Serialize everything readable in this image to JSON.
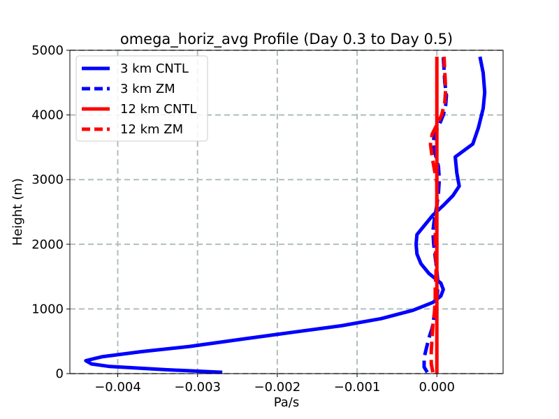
{
  "chart_data": {
    "type": "line",
    "title": "omega_horiz_avg Profile (Day 0.3 to Day 0.5)",
    "xlabel": "Pa/s",
    "ylabel": "Height (m)",
    "xlim": [
      -0.0046,
      0.00083
    ],
    "ylim": [
      0,
      5000
    ],
    "grid": true,
    "legend_position": "upper-left",
    "x_ticks": [
      -0.004,
      -0.003,
      -0.002,
      -0.001,
      0.0
    ],
    "x_tick_labels": [
      "−0.004",
      "−0.003",
      "−0.002",
      "−0.001",
      "0.000"
    ],
    "y_ticks": [
      0,
      1000,
      2000,
      3000,
      4000,
      5000
    ],
    "y_tick_labels": [
      "0",
      "1000",
      "2000",
      "3000",
      "4000",
      "5000"
    ],
    "series": [
      {
        "name": "3 km CNTL",
        "color": "#0000ff",
        "style": "solid",
        "points": [
          [
            -0.00269,
            20
          ],
          [
            -0.0034,
            60
          ],
          [
            -0.0041,
            110
          ],
          [
            -0.00433,
            150
          ],
          [
            -0.0044,
            200
          ],
          [
            -0.0042,
            260
          ],
          [
            -0.0037,
            340
          ],
          [
            -0.0031,
            420
          ],
          [
            -0.0024,
            540
          ],
          [
            -0.0018,
            640
          ],
          [
            -0.0012,
            740
          ],
          [
            -0.0007,
            850
          ],
          [
            -0.0003,
            980
          ],
          [
            -5e-05,
            1100
          ],
          [
            5e-05,
            1200
          ],
          [
            8e-05,
            1300
          ],
          [
            5e-05,
            1400
          ],
          [
            -0.0001,
            1550
          ],
          [
            -0.0002,
            1700
          ],
          [
            -0.00025,
            1850
          ],
          [
            -0.00026,
            2000
          ],
          [
            -0.00025,
            2150
          ],
          [
            -0.00015,
            2300
          ],
          [
            -5e-05,
            2450
          ],
          [
            8e-05,
            2600
          ],
          [
            0.0002,
            2750
          ],
          [
            0.00028,
            2900
          ],
          [
            0.00025,
            3100
          ],
          [
            0.00023,
            3350
          ],
          [
            0.00045,
            3550
          ],
          [
            0.00052,
            3800
          ],
          [
            0.00058,
            4100
          ],
          [
            0.0006,
            4350
          ],
          [
            0.00058,
            4650
          ],
          [
            0.00054,
            4900
          ]
        ]
      },
      {
        "name": "3 km ZM",
        "color": "#0000ff",
        "style": "dashed",
        "points": [
          [
            -0.00012,
            20
          ],
          [
            -0.00016,
            100
          ],
          [
            -0.00016,
            250
          ],
          [
            -0.00013,
            400
          ],
          [
            -0.0001,
            550
          ],
          [
            -6e-05,
            700
          ],
          [
            -4e-05,
            850
          ],
          [
            -2e-05,
            1000
          ],
          [
            0.0,
            1150
          ],
          [
            1e-05,
            1300
          ],
          [
            1e-05,
            1450
          ],
          [
            0.0,
            1600
          ],
          [
            -2e-05,
            1800
          ],
          [
            -4e-05,
            2000
          ],
          [
            -5e-05,
            2200
          ],
          [
            -3e-05,
            2400
          ],
          [
            0.0,
            2600
          ],
          [
            2e-05,
            2800
          ],
          [
            3e-05,
            3000
          ],
          [
            2e-05,
            3200
          ],
          [
            -2e-05,
            3400
          ],
          [
            -5e-05,
            3550
          ],
          [
            -3e-05,
            3700
          ],
          [
            3e-05,
            3850
          ],
          [
            8e-05,
            4000
          ],
          [
            0.00011,
            4150
          ],
          [
            0.00012,
            4300
          ],
          [
            0.0001,
            4500
          ],
          [
            9e-05,
            4700
          ],
          [
            8e-05,
            4900
          ]
        ]
      },
      {
        "name": "12 km CNTL",
        "color": "#ff0000",
        "style": "solid",
        "points": [
          [
            0.0,
            0
          ],
          [
            0.0,
            1000
          ],
          [
            0.0,
            2000
          ],
          [
            0.0,
            3000
          ],
          [
            0.0,
            4000
          ],
          [
            0.0,
            4900
          ]
        ]
      },
      {
        "name": "12 km ZM",
        "color": "#ff0000",
        "style": "dashed",
        "points": [
          [
            -5e-05,
            20
          ],
          [
            -7e-05,
            150
          ],
          [
            -7e-05,
            350
          ],
          [
            -6e-05,
            550
          ],
          [
            -5e-05,
            750
          ],
          [
            -3e-05,
            950
          ],
          [
            -2e-05,
            1150
          ],
          [
            -2e-05,
            1350
          ],
          [
            -1e-05,
            1550
          ],
          [
            -1e-05,
            1750
          ],
          [
            -2e-05,
            1950
          ],
          [
            -2e-05,
            2150
          ],
          [
            -1e-05,
            2350
          ],
          [
            0.0,
            2550
          ],
          [
            0.0,
            2750
          ],
          [
            0.0,
            2950
          ],
          [
            -3e-05,
            3150
          ],
          [
            -6e-05,
            3350
          ],
          [
            -8e-05,
            3550
          ],
          [
            -6e-05,
            3700
          ],
          [
            0.0,
            3850
          ],
          [
            6e-05,
            4000
          ],
          [
            0.0001,
            4200
          ],
          [
            0.00011,
            4400
          ],
          [
            0.0001,
            4650
          ],
          [
            9e-05,
            4900
          ]
        ]
      }
    ]
  }
}
